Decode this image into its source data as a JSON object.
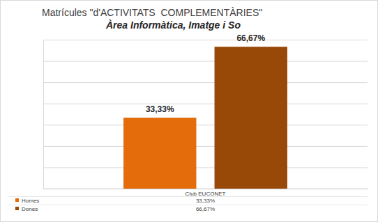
{
  "chart_data": {
    "type": "bar",
    "title": "Matrícules \"d'ACTIVITATS  COMPLEMENTÀRIES\"",
    "subtitle": "Àrea Informàtica, Imatge i So",
    "categories": [
      "Club EUCONET"
    ],
    "series": [
      {
        "name": "Homes",
        "color": "#e46c0a",
        "values": [
          33.33
        ],
        "value_labels": [
          "33,33%"
        ]
      },
      {
        "name": "Dones",
        "color": "#984807",
        "values": [
          66.67
        ],
        "value_labels": [
          "66,67%"
        ]
      }
    ],
    "ylim": [
      0,
      70
    ],
    "yticks": [
      0,
      10,
      20,
      30,
      40,
      50,
      60,
      70
    ],
    "grid": true,
    "data_labels": true,
    "tick_labels": false
  }
}
